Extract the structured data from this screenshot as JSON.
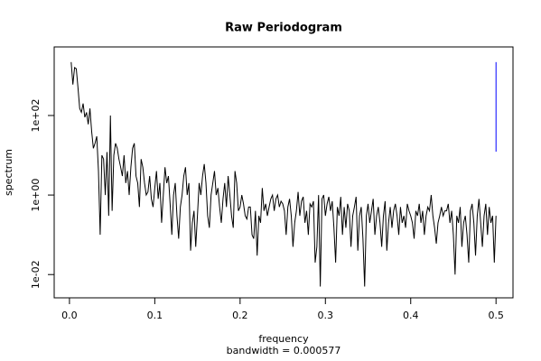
{
  "chart_data": {
    "type": "line",
    "title": "Raw Periodogram",
    "x_label": "frequency",
    "subtitle": "bandwidth = 0.000577",
    "y_label": "spectrum",
    "log_y": true,
    "color": "#000000",
    "xlim": [
      -0.0179,
      0.5199
    ],
    "ylim": [
      0.0026,
      5300
    ],
    "xticks": [
      {
        "value": 0,
        "label": "0.0"
      },
      0.1,
      0.2,
      0.3,
      0.4,
      0.5
    ],
    "yticks": [
      {
        "value": 0.01,
        "label": "1e-02"
      },
      {
        "value": 1,
        "label": "1e+00"
      },
      {
        "value": 100,
        "label": "1e+02"
      }
    ],
    "ci_bar": {
      "x": 0.5,
      "values": [
        12.3,
        2200
      ],
      "color": "#0000ff"
    },
    "x": [
      0.002,
      0.004,
      0.006,
      0.008,
      0.01,
      0.012,
      0.014,
      0.016,
      0.018,
      0.02,
      0.022,
      0.024,
      0.026,
      0.028,
      0.03,
      0.032,
      0.034,
      0.036,
      0.038,
      0.04,
      0.042,
      0.044,
      0.046,
      0.048,
      0.05,
      0.052,
      0.054,
      0.056,
      0.058,
      0.06,
      0.062,
      0.064,
      0.066,
      0.068,
      0.07,
      0.072,
      0.074,
      0.076,
      0.078,
      0.08,
      0.082,
      0.084,
      0.086,
      0.088,
      0.09,
      0.092,
      0.094,
      0.096,
      0.098,
      0.1,
      0.102,
      0.104,
      0.106,
      0.108,
      0.11,
      0.112,
      0.114,
      0.116,
      0.118,
      0.12,
      0.122,
      0.124,
      0.126,
      0.128,
      0.13,
      0.132,
      0.134,
      0.136,
      0.138,
      0.14,
      0.142,
      0.144,
      0.146,
      0.148,
      0.15,
      0.152,
      0.154,
      0.156,
      0.158,
      0.16,
      0.162,
      0.164,
      0.166,
      0.168,
      0.17,
      0.172,
      0.174,
      0.176,
      0.178,
      0.18,
      0.182,
      0.184,
      0.186,
      0.188,
      0.19,
      0.192,
      0.194,
      0.196,
      0.198,
      0.2,
      0.202,
      0.204,
      0.206,
      0.208,
      0.21,
      0.212,
      0.214,
      0.216,
      0.218,
      0.22,
      0.222,
      0.224,
      0.226,
      0.228,
      0.23,
      0.232,
      0.234,
      0.236,
      0.238,
      0.24,
      0.242,
      0.244,
      0.246,
      0.248,
      0.25,
      0.252,
      0.254,
      0.256,
      0.258,
      0.26,
      0.262,
      0.264,
      0.266,
      0.268,
      0.27,
      0.272,
      0.274,
      0.276,
      0.278,
      0.28,
      0.282,
      0.284,
      0.286,
      0.288,
      0.29,
      0.292,
      0.294,
      0.296,
      0.298,
      0.3,
      0.302,
      0.304,
      0.306,
      0.308,
      0.31,
      0.312,
      0.314,
      0.316,
      0.318,
      0.32,
      0.322,
      0.324,
      0.326,
      0.328,
      0.33,
      0.332,
      0.334,
      0.336,
      0.338,
      0.34,
      0.342,
      0.344,
      0.346,
      0.348,
      0.35,
      0.352,
      0.354,
      0.356,
      0.358,
      0.36,
      0.362,
      0.364,
      0.366,
      0.368,
      0.37,
      0.372,
      0.374,
      0.376,
      0.378,
      0.38,
      0.382,
      0.384,
      0.386,
      0.388,
      0.39,
      0.392,
      0.394,
      0.396,
      0.398,
      0.4,
      0.402,
      0.404,
      0.406,
      0.408,
      0.41,
      0.412,
      0.414,
      0.416,
      0.418,
      0.42,
      0.422,
      0.424,
      0.426,
      0.428,
      0.43,
      0.432,
      0.434,
      0.436,
      0.438,
      0.44,
      0.442,
      0.444,
      0.446,
      0.448,
      0.45,
      0.452,
      0.454,
      0.456,
      0.458,
      0.46,
      0.462,
      0.464,
      0.466,
      0.468,
      0.47,
      0.472,
      0.474,
      0.476,
      0.478,
      0.48,
      0.482,
      0.484,
      0.486,
      0.488,
      0.49,
      0.492,
      0.494,
      0.496,
      0.498,
      0.5
    ],
    "values": [
      2200,
      600,
      1600,
      1500,
      500,
      150,
      120,
      200,
      90,
      120,
      60,
      150,
      40,
      15,
      20,
      30,
      4,
      0.1,
      10,
      8,
      1,
      12,
      0.3,
      100,
      0.4,
      10,
      20,
      15,
      8,
      5,
      3,
      10,
      2,
      4,
      1,
      5,
      15,
      20,
      3,
      2,
      0.5,
      8,
      5,
      2,
      1,
      1.2,
      3,
      0.8,
      0.5,
      1.5,
      4,
      0.8,
      2,
      0.2,
      1,
      5,
      2,
      3,
      0.6,
      0.1,
      1,
      2,
      0.3,
      0.08,
      0.5,
      1,
      3,
      5,
      1,
      2,
      0.04,
      0.2,
      0.4,
      0.05,
      0.3,
      2,
      1,
      3,
      6,
      2,
      0.3,
      0.15,
      1,
      2,
      4,
      1,
      1.5,
      0.5,
      0.2,
      0.8,
      2,
      0.5,
      3,
      1,
      0.3,
      0.15,
      4,
      2,
      0.4,
      0.5,
      1,
      0.6,
      0.3,
      0.25,
      0.5,
      0.5,
      0.1,
      0.08,
      0.4,
      0.03,
      0.3,
      0.2,
      1.5,
      0.4,
      0.6,
      0.3,
      0.5,
      0.8,
      1,
      0.4,
      0.8,
      1,
      0.5,
      0.7,
      0.6,
      0.4,
      0.1,
      0.5,
      0.8,
      0.3,
      0.05,
      0.2,
      0.4,
      1.2,
      0.3,
      0.7,
      0.9,
      0.2,
      0.4,
      0.1,
      0.6,
      0.5,
      0.7,
      0.02,
      0.05,
      1,
      0.005,
      0.8,
      1,
      0.3,
      0.6,
      0.9,
      0.4,
      0.7,
      0.15,
      0.02,
      0.5,
      0.3,
      0.9,
      0.1,
      0.5,
      0.15,
      0.6,
      0.4,
      0.05,
      0.3,
      0.5,
      0.9,
      0.04,
      0.3,
      0.5,
      0.08,
      0.005,
      0.3,
      0.6,
      0.2,
      0.4,
      0.8,
      0.1,
      0.3,
      0.5,
      0.2,
      0.05,
      0.3,
      0.7,
      0.04,
      0.2,
      0.5,
      0.15,
      0.4,
      0.6,
      0.3,
      0.1,
      0.5,
      0.2,
      0.3,
      0.15,
      0.6,
      0.4,
      0.3,
      0.2,
      0.08,
      0.4,
      0.3,
      0.6,
      0.2,
      0.4,
      0.1,
      0.3,
      0.5,
      0.4,
      1,
      0.3,
      0.15,
      0.06,
      0.2,
      0.3,
      0.5,
      0.3,
      0.4,
      0.4,
      0.6,
      0.2,
      0.4,
      0.1,
      0.01,
      0.3,
      0.2,
      0.5,
      0.05,
      0.2,
      0.3,
      0.1,
      0.02,
      0.4,
      0.6,
      0.2,
      0.03,
      0.3,
      0.8,
      0.2,
      0.05,
      0.3,
      0.6,
      0.1,
      0.5,
      0.2,
      0.3,
      0.02,
      0.3
    ]
  }
}
